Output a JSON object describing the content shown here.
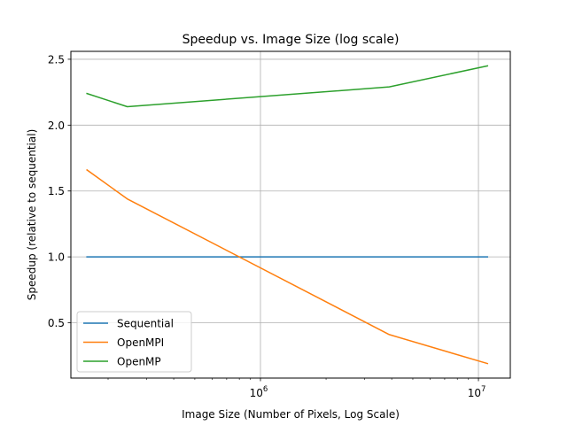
{
  "chart_data": {
    "type": "line",
    "title": "Speedup vs. Image Size (log scale)",
    "xlabel": "Image Size (Number of Pixels, Log Scale)",
    "ylabel": "Speedup (relative to sequential)",
    "xscale": "log",
    "xlim": [
      135000,
      14000000
    ],
    "ylim": [
      0.08,
      2.56
    ],
    "grid": true,
    "legend_position": "lower-left",
    "x": [
      160000,
      245000,
      3900000,
      11000000
    ],
    "x_ticks": [
      {
        "value": 1000000,
        "base": "10",
        "exp": "6"
      },
      {
        "value": 10000000,
        "base": "10",
        "exp": "7"
      }
    ],
    "y_ticks": [
      {
        "value": 0.5,
        "label": "0.5"
      },
      {
        "value": 1.0,
        "label": "1.0"
      },
      {
        "value": 1.5,
        "label": "1.5"
      },
      {
        "value": 2.0,
        "label": "2.0"
      },
      {
        "value": 2.5,
        "label": "2.5"
      }
    ],
    "series": [
      {
        "name": "Sequential",
        "color": "#1f77b4",
        "values": [
          1.0,
          1.0,
          1.0,
          1.0
        ]
      },
      {
        "name": "OpenMPI",
        "color": "#ff7f0e",
        "values": [
          1.66,
          1.44,
          0.41,
          0.19
        ]
      },
      {
        "name": "OpenMP",
        "color": "#2ca02c",
        "values": [
          2.24,
          2.14,
          2.29,
          2.45
        ]
      }
    ]
  }
}
